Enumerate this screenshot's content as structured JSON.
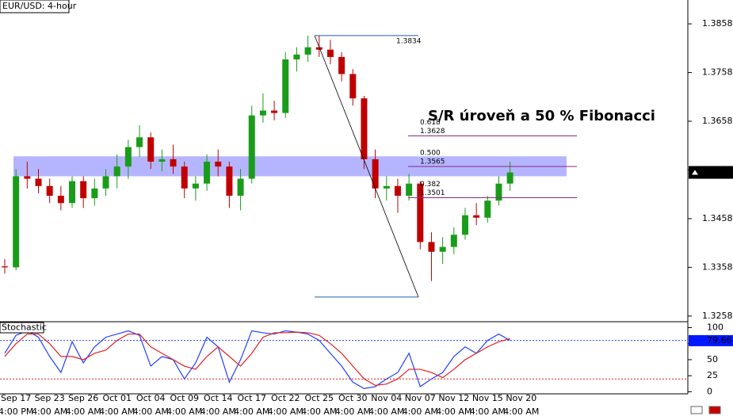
{
  "chart_data": [
    {
      "type": "candlestick",
      "title": "EUR/USD: 4-hour",
      "categories": [
        null,
        "Sep 17",
        null,
        null,
        "Sep 23",
        null,
        null,
        "Sep 26",
        null,
        null,
        "Oct 01",
        null,
        null,
        "Oct 04",
        null,
        null,
        "Oct 09",
        null,
        null,
        "Oct 14",
        null,
        null,
        "Oct 17",
        null,
        null,
        "Oct 22",
        null,
        null,
        "Oct 25",
        null,
        null,
        "Oct 30",
        null,
        null,
        "Nov 04",
        null,
        null,
        "Nov 07",
        null,
        null,
        "Nov 12",
        null,
        null,
        "Nov 15",
        null,
        null,
        "Nov 20",
        null
      ],
      "times": [
        null,
        "4:00 PM",
        null,
        null,
        "4:00 AM",
        null,
        null,
        "4:00 AM",
        null,
        null,
        "4:00 AM",
        null,
        null,
        "4:00 AM",
        null,
        null,
        "4:00 AM",
        null,
        null,
        "4:00 AM",
        null,
        null,
        "4:00 AM",
        null,
        null,
        "4:00 AM",
        null,
        null,
        "4:00 AM",
        null,
        null,
        "4:00 AM",
        null,
        null,
        "4:00 AM",
        null,
        null,
        "4:00 AM",
        null,
        null,
        "4:00 AM",
        null,
        null,
        "4:00 AM",
        null,
        null,
        "4:00 AM",
        null
      ],
      "open": [
        1.336,
        1.3358,
        1.3545,
        1.354,
        1.3525,
        1.3505,
        1.349,
        1.3535,
        1.35,
        1.352,
        1.3545,
        1.3565,
        1.3605,
        1.3625,
        1.3575,
        1.358,
        1.3565,
        1.352,
        1.353,
        1.3575,
        1.3565,
        1.3505,
        1.354,
        1.367,
        1.368,
        1.3675,
        1.3785,
        1.3795,
        1.381,
        1.3805,
        1.379,
        1.3755,
        1.3705,
        1.358,
        1.352,
        1.3525,
        1.3505,
        1.353,
        1.341,
        1.339,
        1.34,
        1.3425,
        1.3465,
        1.346,
        1.3495,
        1.353,
        null,
        null
      ],
      "high": [
        1.3375,
        1.356,
        1.3575,
        1.356,
        1.354,
        1.3525,
        1.3545,
        1.3545,
        1.354,
        1.356,
        1.359,
        1.362,
        1.365,
        1.3635,
        1.36,
        1.361,
        1.3575,
        1.3545,
        1.359,
        1.36,
        1.3575,
        1.356,
        1.369,
        1.3715,
        1.37,
        1.38,
        1.381,
        1.3834,
        1.3834,
        1.3825,
        1.38,
        1.3765,
        1.371,
        1.36,
        1.3545,
        1.354,
        1.355,
        1.3535,
        1.343,
        1.342,
        1.344,
        1.348,
        1.349,
        1.3505,
        1.3545,
        1.3575,
        null,
        null
      ],
      "low": [
        1.3345,
        1.3352,
        1.352,
        1.351,
        1.349,
        1.3475,
        1.348,
        1.348,
        1.3485,
        1.3505,
        1.352,
        1.354,
        1.3585,
        1.356,
        1.3555,
        1.355,
        1.35,
        1.3495,
        1.3515,
        1.3545,
        1.348,
        1.3475,
        1.353,
        1.3655,
        1.366,
        1.3665,
        1.376,
        1.378,
        1.379,
        1.3775,
        1.374,
        1.369,
        1.356,
        1.35,
        1.3495,
        1.347,
        1.3495,
        1.3395,
        1.333,
        1.3365,
        1.3385,
        1.3415,
        1.3445,
        1.345,
        1.3485,
        1.3515,
        null,
        null
      ],
      "close": [
        1.3358,
        1.3545,
        1.354,
        1.3525,
        1.3505,
        1.349,
        1.3535,
        1.35,
        1.352,
        1.3545,
        1.3565,
        1.3605,
        1.3625,
        1.3575,
        1.358,
        1.3565,
        1.352,
        1.353,
        1.3575,
        1.3565,
        1.3505,
        1.354,
        1.367,
        1.368,
        1.3675,
        1.3785,
        1.3795,
        1.381,
        1.3805,
        1.379,
        1.3755,
        1.3705,
        1.358,
        1.352,
        1.3525,
        1.3505,
        1.353,
        1.341,
        1.339,
        1.34,
        1.3425,
        1.3465,
        1.346,
        1.3495,
        1.353,
        1.3553,
        null,
        null
      ],
      "up_color": "#1a9c1a",
      "down_color": "#c00000",
      "ylim": [
        1.3248,
        1.3907
      ],
      "yticks": [
        1.3258,
        1.3358,
        1.3458,
        1.3558,
        1.3658,
        1.3758,
        1.3858
      ],
      "last_price": 1.3553,
      "annotation": "S/R úroveň a 50 % Fibonacci",
      "sr_zone": [
        1.3545,
        1.3586
      ],
      "sr_color": "#a8a8ff",
      "swing_high": 1.3834,
      "swing_low": 1.3297,
      "swing_color": "#1f5fa8",
      "fib_color": "#8a2a8a",
      "fib": [
        {
          "level": "0.618",
          "price": 1.3628
        },
        {
          "level": "0.500",
          "price": 1.3565
        },
        {
          "level": "0.382",
          "price": 1.3501
        }
      ]
    },
    {
      "type": "line",
      "title": "Stochastic",
      "series": [
        {
          "name": "%K",
          "color": "#2040ff",
          "values": [
            60,
            88,
            95,
            85,
            55,
            30,
            78,
            45,
            70,
            85,
            90,
            95,
            88,
            40,
            55,
            50,
            20,
            45,
            85,
            70,
            15,
            50,
            95,
            92,
            90,
            95,
            93,
            90,
            80,
            60,
            40,
            15,
            5,
            8,
            20,
            30,
            60,
            8,
            20,
            30,
            55,
            70,
            60,
            80,
            90,
            80,
            null,
            null
          ]
        },
        {
          "name": "%D",
          "color": "#e02020",
          "values": [
            55,
            75,
            90,
            90,
            75,
            55,
            55,
            50,
            60,
            65,
            80,
            90,
            90,
            70,
            60,
            50,
            40,
            35,
            55,
            70,
            55,
            40,
            60,
            85,
            92,
            92,
            93,
            92,
            88,
            75,
            60,
            40,
            20,
            10,
            12,
            20,
            35,
            35,
            30,
            22,
            35,
            50,
            60,
            70,
            78,
            83,
            null,
            null
          ]
        }
      ],
      "ylim": [
        -2,
        108
      ],
      "yticks": [
        0,
        25,
        50,
        75,
        100
      ],
      "levels": [
        {
          "value": 80,
          "color": "#2040ff"
        },
        {
          "value": 20,
          "color": "#e02020"
        }
      ],
      "last_value": 79.66
    }
  ]
}
